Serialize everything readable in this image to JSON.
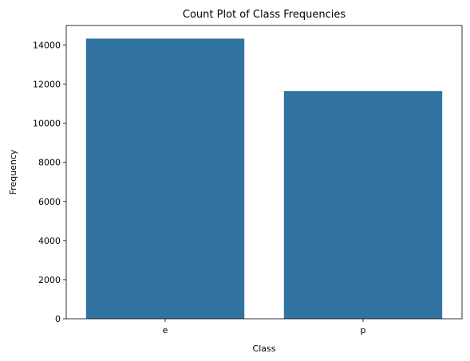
{
  "chart_data": {
    "type": "bar",
    "title": "Count Plot of Class Frequencies",
    "xlabel": "Class",
    "ylabel": "Frequency",
    "categories": [
      "e",
      "p"
    ],
    "values": [
      14330,
      11650
    ],
    "ylim": [
      0,
      15000
    ],
    "yticks": [
      0,
      2000,
      4000,
      6000,
      8000,
      10000,
      12000,
      14000
    ],
    "ytick_labels": [
      "0",
      "2000",
      "4000",
      "6000",
      "8000",
      "10000",
      "12000",
      "14000"
    ],
    "bar_color": "#3274a1",
    "grid": false,
    "legend": "none"
  }
}
